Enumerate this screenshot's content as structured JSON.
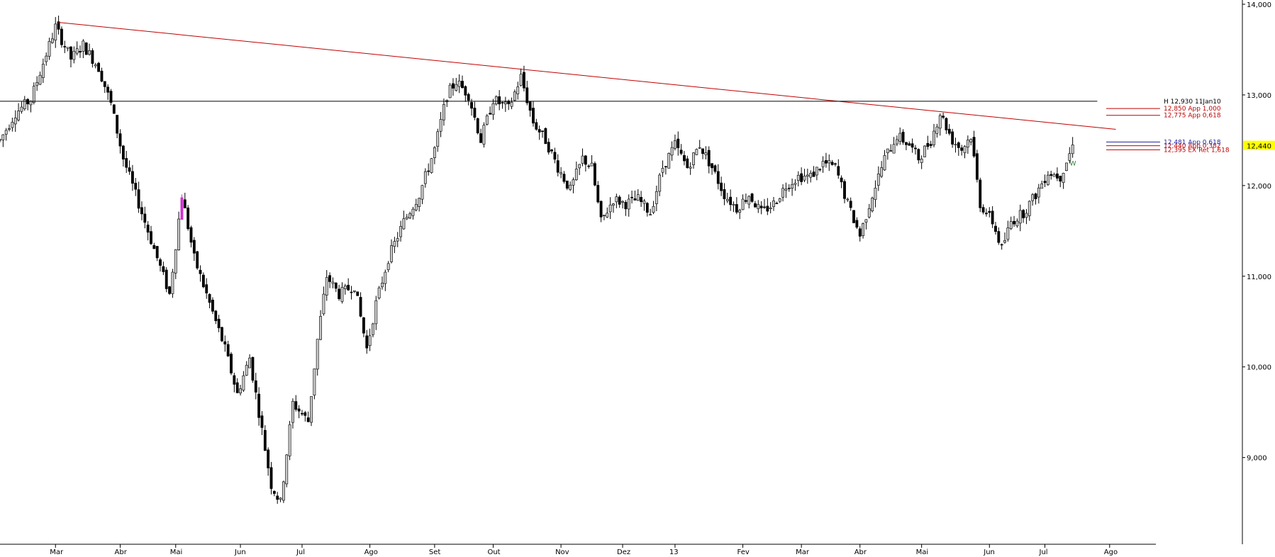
{
  "chart_data": {
    "type": "candlestick",
    "title": "",
    "xlabel": "",
    "ylabel": "",
    "ylim": [
      8200,
      14000
    ],
    "grid": false,
    "y_ticks": [
      {
        "value": 14000,
        "label": "14,000"
      },
      {
        "value": 13000,
        "label": "13,000"
      },
      {
        "value": 12000,
        "label": "12,000"
      },
      {
        "value": 11000,
        "label": "11,000"
      },
      {
        "value": 10000,
        "label": "10,000"
      },
      {
        "value": 9000,
        "label": "9,000"
      }
    ],
    "x_ticks": [
      {
        "label": "Mar",
        "x": 3
      },
      {
        "label": "Abr",
        "x": 24
      },
      {
        "label": "Mai",
        "x": 42
      },
      {
        "label": "Jun",
        "x": 63
      },
      {
        "label": "Jul",
        "x": 83
      },
      {
        "label": "Ago",
        "x": 105
      },
      {
        "label": "Set",
        "x": 126
      },
      {
        "label": "Out",
        "x": 145
      },
      {
        "label": "Nov",
        "x": 167
      },
      {
        "label": "Dez",
        "x": 187
      },
      {
        "label": "13",
        "x": 204
      },
      {
        "label": "Fev",
        "x": 226
      },
      {
        "label": "Mar",
        "x": 245
      },
      {
        "label": "Abr",
        "x": 264
      },
      {
        "label": "Mai",
        "x": 284
      },
      {
        "label": "Jun",
        "x": 306
      },
      {
        "label": "Jul",
        "x": 324
      },
      {
        "label": "Ago",
        "x": 345
      }
    ],
    "x_range": [
      -15,
      360
    ],
    "candles": [],
    "ohlc_anchor": {
      "start_price": 12600,
      "path": [
        [
          -15,
          12500
        ],
        [
          -10,
          12800
        ],
        [
          -5,
          12950
        ],
        [
          3,
          13750
        ],
        [
          8,
          13400
        ],
        [
          12,
          13550
        ],
        [
          17,
          13300
        ],
        [
          21,
          12900
        ],
        [
          25,
          12300
        ],
        [
          30,
          11800
        ],
        [
          35,
          11300
        ],
        [
          40,
          10800
        ],
        [
          44,
          11900
        ],
        [
          48,
          11200
        ],
        [
          53,
          10700
        ],
        [
          58,
          10200
        ],
        [
          62,
          9700
        ],
        [
          66,
          10100
        ],
        [
          70,
          9300
        ],
        [
          73,
          8700
        ],
        [
          76,
          8500
        ],
        [
          80,
          9600
        ],
        [
          85,
          9400
        ],
        [
          88,
          10300
        ],
        [
          91,
          11000
        ],
        [
          95,
          10800
        ],
        [
          100,
          10900
        ],
        [
          104,
          10200
        ],
        [
          107,
          10700
        ],
        [
          111,
          11200
        ],
        [
          116,
          11600
        ],
        [
          121,
          11900
        ],
        [
          126,
          12400
        ],
        [
          130,
          13000
        ],
        [
          133,
          13150
        ],
        [
          137,
          13000
        ],
        [
          141,
          12500
        ],
        [
          145,
          12950
        ],
        [
          150,
          12850
        ],
        [
          154,
          13200
        ],
        [
          158,
          12700
        ],
        [
          162,
          12500
        ],
        [
          166,
          12200
        ],
        [
          170,
          11950
        ],
        [
          174,
          12300
        ],
        [
          177,
          12200
        ],
        [
          180,
          11600
        ],
        [
          184,
          11850
        ],
        [
          188,
          11800
        ],
        [
          192,
          11850
        ],
        [
          196,
          11700
        ],
        [
          200,
          12200
        ],
        [
          204,
          12450
        ],
        [
          208,
          12200
        ],
        [
          212,
          12450
        ],
        [
          216,
          12200
        ],
        [
          220,
          11900
        ],
        [
          224,
          11750
        ],
        [
          228,
          11900
        ],
        [
          232,
          11700
        ],
        [
          236,
          11800
        ],
        [
          240,
          12000
        ],
        [
          244,
          12100
        ],
        [
          248,
          12100
        ],
        [
          252,
          12250
        ],
        [
          256,
          12200
        ],
        [
          260,
          11800
        ],
        [
          264,
          11450
        ],
        [
          268,
          11900
        ],
        [
          272,
          12300
        ],
        [
          276,
          12550
        ],
        [
          280,
          12450
        ],
        [
          283,
          12300
        ],
        [
          287,
          12500
        ],
        [
          290,
          12800
        ],
        [
          294,
          12500
        ],
        [
          297,
          12400
        ],
        [
          300,
          12550
        ],
        [
          303,
          11800
        ],
        [
          307,
          11600
        ],
        [
          310,
          11300
        ],
        [
          313,
          11600
        ],
        [
          317,
          11700
        ],
        [
          321,
          11900
        ],
        [
          325,
          12150
        ],
        [
          329,
          12100
        ],
        [
          333,
          12440
        ]
      ]
    },
    "lines": [
      {
        "name": "downtrend",
        "color": "#c00000",
        "x1": 4,
        "y1": 13800,
        "x2": 347,
        "y2": 12620
      },
      {
        "name": "H",
        "color": "#000000",
        "x1": -15,
        "y1": 12930,
        "x2": 341,
        "y2": 12930
      }
    ],
    "levels": [
      {
        "text": "H 12,930 11Jan10",
        "value": 12930,
        "color": "#000000"
      },
      {
        "text": "12,850 App 1,000",
        "value": 12850,
        "color": "#c00000"
      },
      {
        "text": "12,775 App 0,618",
        "value": 12775,
        "color": "#c00000"
      },
      {
        "text": "12,481 App 0,618",
        "value": 12481,
        "color": "#1f1f9f"
      },
      {
        "text": "12,440 App 0,382",
        "value": 12440,
        "color": "#c00000"
      },
      {
        "text": "12,395 EX Ret 1,618",
        "value": 12395,
        "color": "#c00000"
      }
    ],
    "price_tag": {
      "text": "12,440",
      "value": 12440,
      "bg": "#ffff00"
    },
    "marker": {
      "text": "W",
      "x": 333,
      "value": 12300,
      "color": "#2e7d32"
    },
    "highlight_candle": {
      "x": 44,
      "color": "#cc33cc"
    },
    "colors": {
      "up_fill": "#c8c8c8",
      "down_fill": "#000000",
      "wick": "#000000",
      "axis": "#000000"
    }
  }
}
